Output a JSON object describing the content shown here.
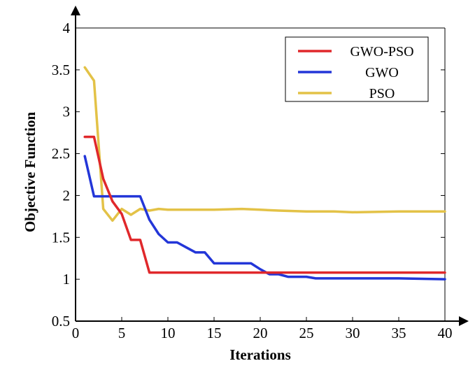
{
  "chart_data": {
    "type": "line",
    "title": "",
    "xlabel": "Iterations",
    "ylabel": "Objective Function",
    "xlim": [
      0,
      40
    ],
    "ylim": [
      0.5,
      4
    ],
    "xticks": [
      0,
      5,
      10,
      15,
      20,
      25,
      30,
      35,
      40
    ],
    "xtick_labels": [
      "0",
      "5",
      "10",
      "15",
      "20",
      "25",
      "30",
      "35",
      "40"
    ],
    "yticks": [
      0.5,
      1,
      1.5,
      2,
      2.5,
      3,
      3.5,
      4
    ],
    "ytick_labels": [
      "0.5",
      "1",
      "1.5",
      "2",
      "2.5",
      "3",
      "3.5",
      "4"
    ],
    "grid": false,
    "legend_position": "top-right",
    "series": [
      {
        "name": "GWO-PSO",
        "color": "#e0282b",
        "x": [
          1,
          2,
          3,
          4,
          5,
          6,
          7,
          8,
          9,
          10,
          15,
          20,
          25,
          30,
          35,
          40
        ],
        "y": [
          2.7,
          2.7,
          2.2,
          1.93,
          1.78,
          1.47,
          1.47,
          1.08,
          1.08,
          1.08,
          1.08,
          1.08,
          1.08,
          1.08,
          1.08,
          1.08
        ]
      },
      {
        "name": "GWO",
        "color": "#2336d8",
        "x": [
          1,
          2,
          3,
          4,
          5,
          6,
          7,
          8,
          9,
          10,
          11,
          12,
          13,
          14,
          15,
          16,
          17,
          18,
          19,
          20,
          21,
          22,
          23,
          24,
          25,
          26,
          30,
          35,
          40
        ],
        "y": [
          2.47,
          1.99,
          1.99,
          1.99,
          1.99,
          1.99,
          1.99,
          1.71,
          1.54,
          1.44,
          1.44,
          1.38,
          1.32,
          1.32,
          1.19,
          1.19,
          1.19,
          1.19,
          1.19,
          1.12,
          1.06,
          1.06,
          1.03,
          1.03,
          1.03,
          1.01,
          1.01,
          1.01,
          1.0
        ]
      },
      {
        "name": "PSO",
        "color": "#e3c247",
        "x": [
          1,
          2,
          3,
          4,
          5,
          6,
          7,
          8,
          9,
          10,
          11,
          12,
          15,
          18,
          20,
          22,
          25,
          28,
          30,
          35,
          40
        ],
        "y": [
          3.53,
          3.37,
          1.84,
          1.7,
          1.84,
          1.77,
          1.84,
          1.82,
          1.84,
          1.83,
          1.83,
          1.83,
          1.83,
          1.84,
          1.83,
          1.82,
          1.81,
          1.81,
          1.8,
          1.81,
          1.81
        ]
      }
    ]
  }
}
